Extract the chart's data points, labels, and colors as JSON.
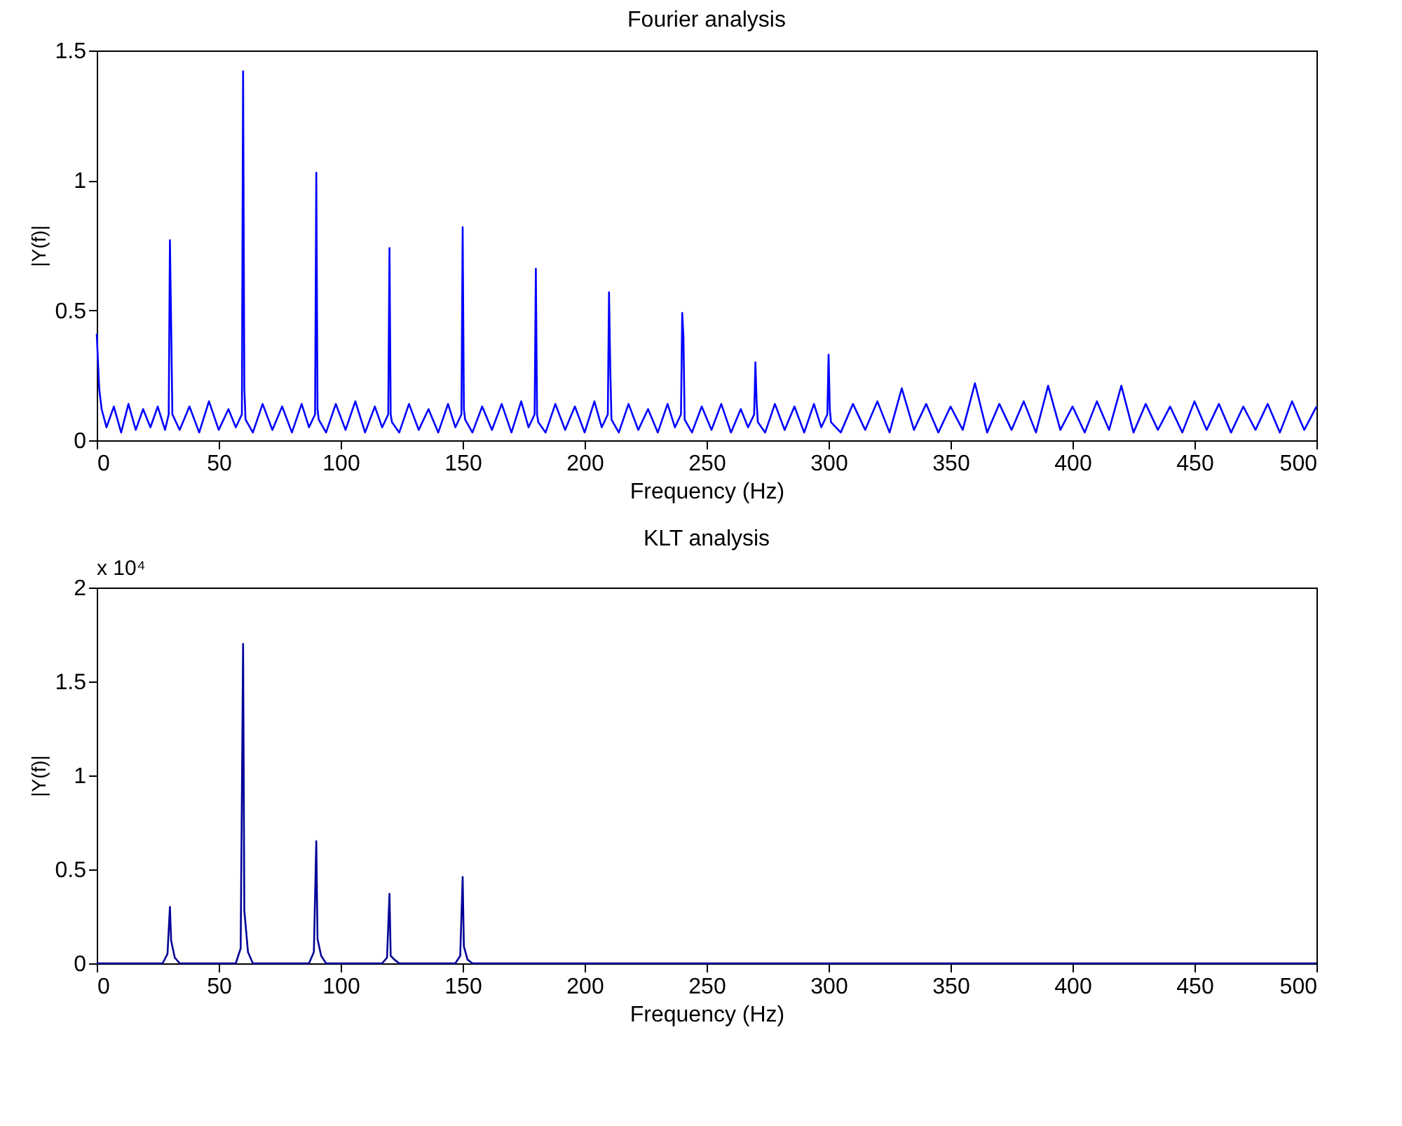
{
  "chart_data": [
    {
      "type": "line",
      "title": "Fourier analysis",
      "xlabel": "Frequency (Hz)",
      "ylabel": "|Y(f)|",
      "xlim": [
        0,
        500
      ],
      "xticks": [
        0,
        50,
        100,
        150,
        200,
        250,
        300,
        350,
        400,
        450,
        500
      ],
      "ylim": [
        0,
        1.5
      ],
      "yticks": [
        0,
        0.5,
        1,
        1.5
      ],
      "grid": false,
      "marker": "none",
      "line_style": "solid",
      "series": [
        {
          "color": "#0000ff",
          "x": [
            0,
            1,
            2,
            4,
            7,
            10,
            13,
            16,
            19,
            22,
            25,
            28,
            29.5,
            30,
            30.5,
            31,
            34,
            38,
            42,
            46,
            50,
            54,
            57,
            59.5,
            60,
            60.5,
            61,
            64,
            68,
            72,
            76,
            80,
            84,
            87,
            89.5,
            90,
            90.5,
            91,
            94,
            98,
            102,
            106,
            110,
            114,
            117,
            119.5,
            120,
            120.5,
            121,
            124,
            128,
            132,
            136,
            140,
            144,
            147,
            149.5,
            150,
            150.5,
            151,
            154,
            158,
            162,
            166,
            170,
            174,
            177,
            179.5,
            180,
            180.5,
            181,
            184,
            188,
            192,
            196,
            200,
            204,
            207,
            209.5,
            210,
            210.5,
            211,
            214,
            218,
            222,
            226,
            230,
            234,
            237,
            239.5,
            240,
            240.5,
            241,
            244,
            248,
            252,
            256,
            260,
            264,
            267,
            269.5,
            270,
            270.5,
            271,
            274,
            278,
            282,
            286,
            290,
            294,
            297,
            299.5,
            300,
            300.5,
            301,
            305,
            310,
            315,
            320,
            325,
            330,
            335,
            340,
            345,
            350,
            355,
            360,
            365,
            370,
            375,
            380,
            385,
            390,
            395,
            400,
            405,
            410,
            415,
            420,
            425,
            430,
            435,
            440,
            445,
            450,
            455,
            460,
            465,
            470,
            475,
            480,
            485,
            490,
            495,
            500
          ],
          "values": [
            0.41,
            0.2,
            0.12,
            0.05,
            0.13,
            0.03,
            0.14,
            0.04,
            0.12,
            0.05,
            0.13,
            0.04,
            0.1,
            0.77,
            0.45,
            0.1,
            0.04,
            0.13,
            0.03,
            0.15,
            0.04,
            0.12,
            0.05,
            0.1,
            1.42,
            0.2,
            0.08,
            0.03,
            0.14,
            0.04,
            0.13,
            0.03,
            0.14,
            0.05,
            0.1,
            1.03,
            0.12,
            0.08,
            0.03,
            0.14,
            0.04,
            0.15,
            0.03,
            0.13,
            0.05,
            0.1,
            0.74,
            0.1,
            0.07,
            0.03,
            0.14,
            0.04,
            0.12,
            0.03,
            0.14,
            0.05,
            0.1,
            0.82,
            0.12,
            0.08,
            0.03,
            0.13,
            0.04,
            0.14,
            0.03,
            0.15,
            0.05,
            0.1,
            0.66,
            0.1,
            0.07,
            0.03,
            0.14,
            0.04,
            0.13,
            0.03,
            0.15,
            0.05,
            0.1,
            0.57,
            0.28,
            0.08,
            0.03,
            0.14,
            0.04,
            0.12,
            0.03,
            0.14,
            0.05,
            0.1,
            0.49,
            0.4,
            0.08,
            0.03,
            0.13,
            0.04,
            0.14,
            0.03,
            0.12,
            0.05,
            0.1,
            0.3,
            0.15,
            0.07,
            0.03,
            0.14,
            0.04,
            0.13,
            0.03,
            0.14,
            0.05,
            0.1,
            0.33,
            0.12,
            0.07,
            0.03,
            0.14,
            0.04,
            0.15,
            0.03,
            0.2,
            0.04,
            0.14,
            0.03,
            0.13,
            0.04,
            0.22,
            0.03,
            0.14,
            0.04,
            0.15,
            0.03,
            0.21,
            0.04,
            0.13,
            0.03,
            0.15,
            0.04,
            0.21,
            0.03,
            0.14,
            0.04,
            0.13,
            0.03,
            0.15,
            0.04,
            0.14,
            0.03,
            0.13,
            0.04,
            0.14,
            0.03,
            0.15,
            0.04,
            0.13
          ]
        }
      ]
    },
    {
      "type": "line",
      "title": "KLT analysis",
      "xlabel": "Frequency (Hz)",
      "ylabel": "|Y(f)|",
      "annotations": [
        "x 10⁴"
      ],
      "xlim": [
        0,
        500
      ],
      "xticks": [
        0,
        50,
        100,
        150,
        200,
        250,
        300,
        350,
        400,
        450,
        500
      ],
      "ylim": [
        0,
        2
      ],
      "yticks": [
        0,
        0.5,
        1,
        1.5,
        2
      ],
      "grid": false,
      "marker": "none",
      "line_style": "solid",
      "series": [
        {
          "color": "#000099",
          "x": [
            0,
            27,
            29,
            30,
            30.5,
            32,
            34,
            57,
            59,
            60,
            60.5,
            62,
            64,
            87,
            89,
            90,
            90.5,
            92,
            94,
            117,
            119,
            120,
            120.5,
            122,
            124,
            147,
            149,
            150,
            150.5,
            152,
            154,
            500
          ],
          "values": [
            0,
            0,
            0.05,
            0.3,
            0.12,
            0.03,
            0,
            0,
            0.08,
            1.7,
            0.28,
            0.06,
            0,
            0,
            0.06,
            0.65,
            0.13,
            0.04,
            0,
            0,
            0.03,
            0.37,
            0.04,
            0.02,
            0,
            0,
            0.04,
            0.46,
            0.09,
            0.02,
            0,
            0
          ]
        }
      ]
    }
  ]
}
